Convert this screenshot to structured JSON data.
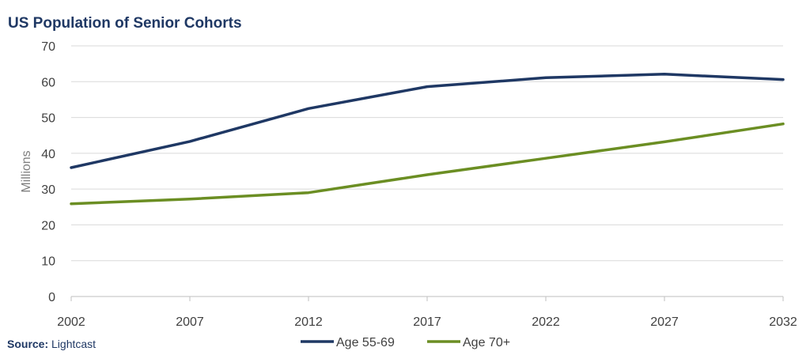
{
  "chart_data": {
    "type": "line",
    "title": "US Population of Senior Cohorts",
    "ylabel": "Millions",
    "xlabel": "",
    "x": [
      2002,
      2007,
      2012,
      2017,
      2022,
      2027,
      2032
    ],
    "xticks": [
      "2002",
      "2007",
      "2012",
      "2017",
      "2022",
      "2027",
      "2032"
    ],
    "ylim": [
      0,
      70
    ],
    "yticks": [
      "0",
      "10",
      "20",
      "30",
      "40",
      "50",
      "60",
      "70"
    ],
    "grid": true,
    "legend": "bottom",
    "series": [
      {
        "name": "Age 55-69",
        "color": "#1f3864",
        "values": [
          36.0,
          43.3,
          52.5,
          58.6,
          61.1,
          62.1,
          60.6
        ]
      },
      {
        "name": "Age 70+",
        "color": "#6b8e23",
        "values": [
          25.9,
          27.2,
          29.0,
          34.0,
          38.6,
          43.2,
          48.2
        ]
      }
    ]
  },
  "source": {
    "label": "Source:",
    "value": "Lightcast"
  }
}
